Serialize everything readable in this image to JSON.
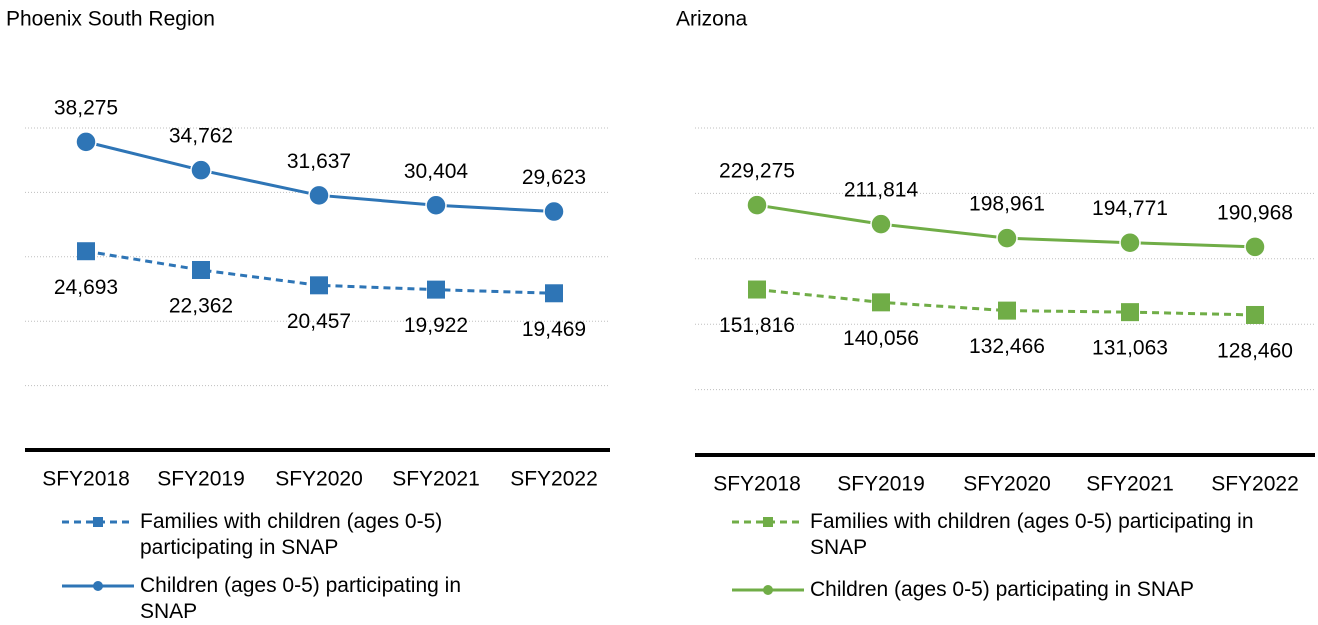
{
  "chart_data": [
    {
      "type": "line",
      "title": "Phoenix South Region",
      "categories": [
        "SFY2018",
        "SFY2019",
        "SFY2020",
        "SFY2021",
        "SFY2022"
      ],
      "series": [
        {
          "name": "Families with children (ages 0-5) participating in SNAP",
          "color": "#2e75b6",
          "line_style": "dashed",
          "marker": "square",
          "values": [
            24693,
            22362,
            20457,
            19922,
            19469
          ],
          "value_labels": [
            "24,693",
            "22,362",
            "20,457",
            "19,922",
            "19,469"
          ]
        },
        {
          "name": "Children (ages 0-5) participating in SNAP",
          "color": "#2e75b6",
          "line_style": "solid",
          "marker": "circle",
          "values": [
            38275,
            34762,
            31637,
            30404,
            29623
          ],
          "value_labels": [
            "38,275",
            "34,762",
            "31,637",
            "30,404",
            "29,623"
          ]
        }
      ],
      "ylim": [
        0,
        40000
      ],
      "yticks": [
        0,
        8000,
        16000,
        24000,
        32000,
        40000
      ],
      "grid": true
    },
    {
      "type": "line",
      "title": "Arizona",
      "categories": [
        "SFY2018",
        "SFY2019",
        "SFY2020",
        "SFY2021",
        "SFY2022"
      ],
      "series": [
        {
          "name": "Families with children (ages 0-5) participating in SNAP",
          "color": "#70ad47",
          "line_style": "dashed",
          "marker": "square",
          "values": [
            151816,
            140056,
            132466,
            131063,
            128460
          ],
          "value_labels": [
            "151,816",
            "140,056",
            "132,466",
            "131,063",
            "128,460"
          ]
        },
        {
          "name": "Children (ages 0-5) participating in SNAP",
          "color": "#70ad47",
          "line_style": "solid",
          "marker": "circle",
          "values": [
            229275,
            211814,
            198961,
            194771,
            190968
          ],
          "value_labels": [
            "229,275",
            "211,814",
            "198,961",
            "194,771",
            "190,968"
          ]
        }
      ],
      "ylim": [
        0,
        300000
      ],
      "yticks": [
        0,
        60000,
        120000,
        180000,
        240000,
        300000
      ],
      "grid": true
    }
  ]
}
